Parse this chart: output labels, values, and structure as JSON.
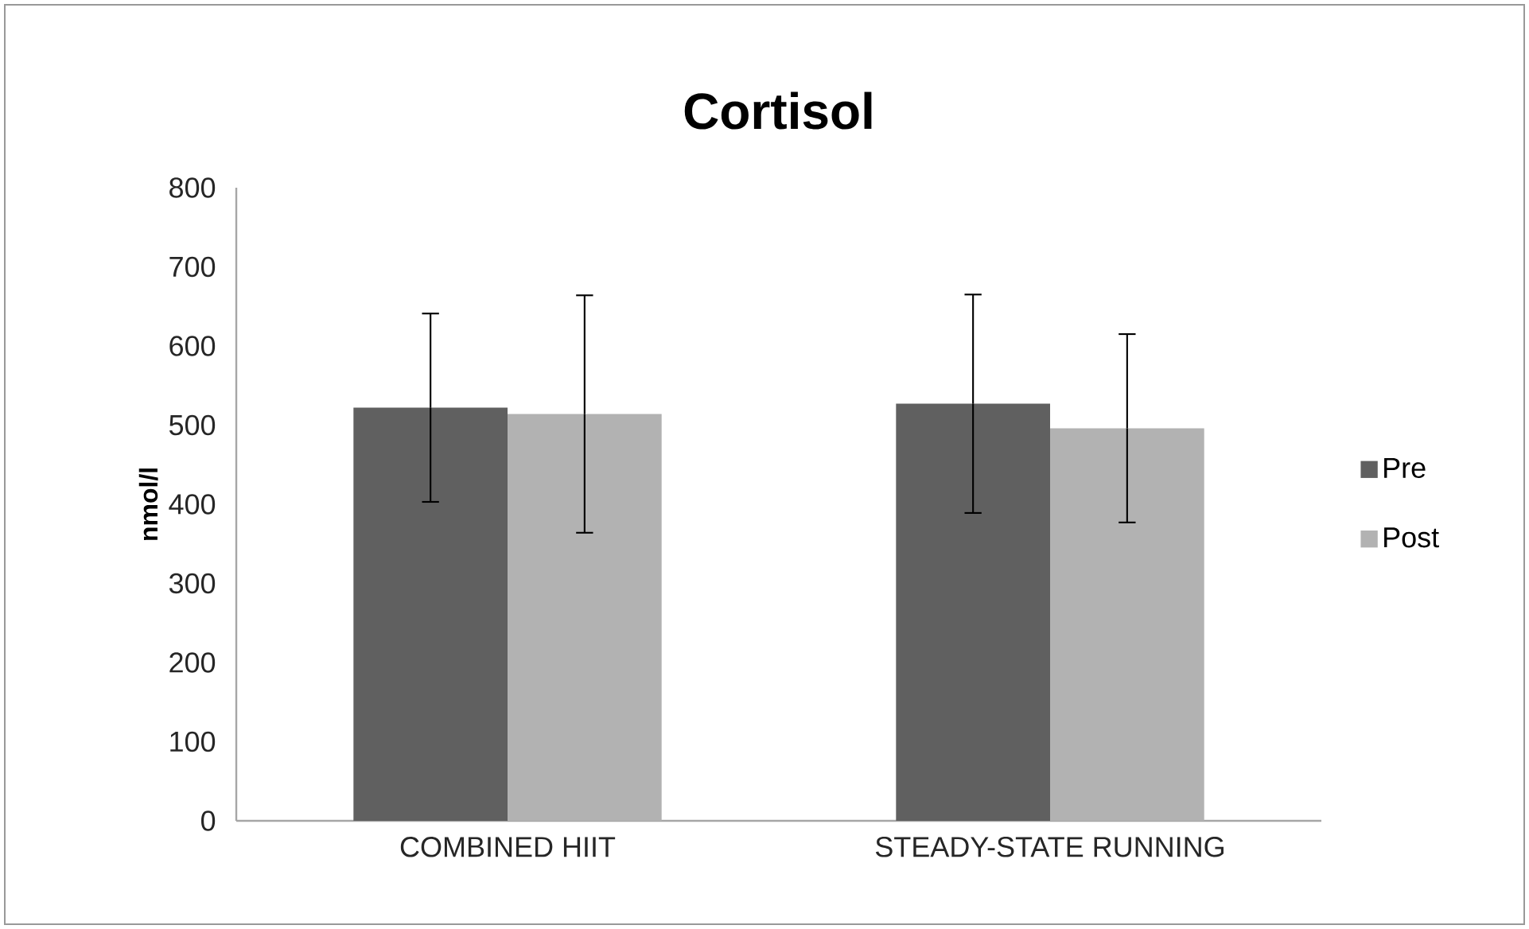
{
  "chart_data": {
    "type": "bar",
    "title": "Cortisol",
    "ylabel": "nmol/l",
    "categories": [
      "COMBINED HIIT",
      "STEADY-STATE RUNNING"
    ],
    "series": [
      {
        "name": "Pre",
        "color": "#606060",
        "values": [
          522,
          527
        ],
        "errors": [
          119,
          138
        ]
      },
      {
        "name": "Post",
        "color": "#b2b2b2",
        "values": [
          514,
          496
        ],
        "errors": [
          150,
          119
        ]
      }
    ],
    "ylim": [
      0,
      800
    ],
    "yticks": [
      0,
      100,
      200,
      300,
      400,
      500,
      600,
      700,
      800
    ],
    "grid": false,
    "legend": "right"
  }
}
